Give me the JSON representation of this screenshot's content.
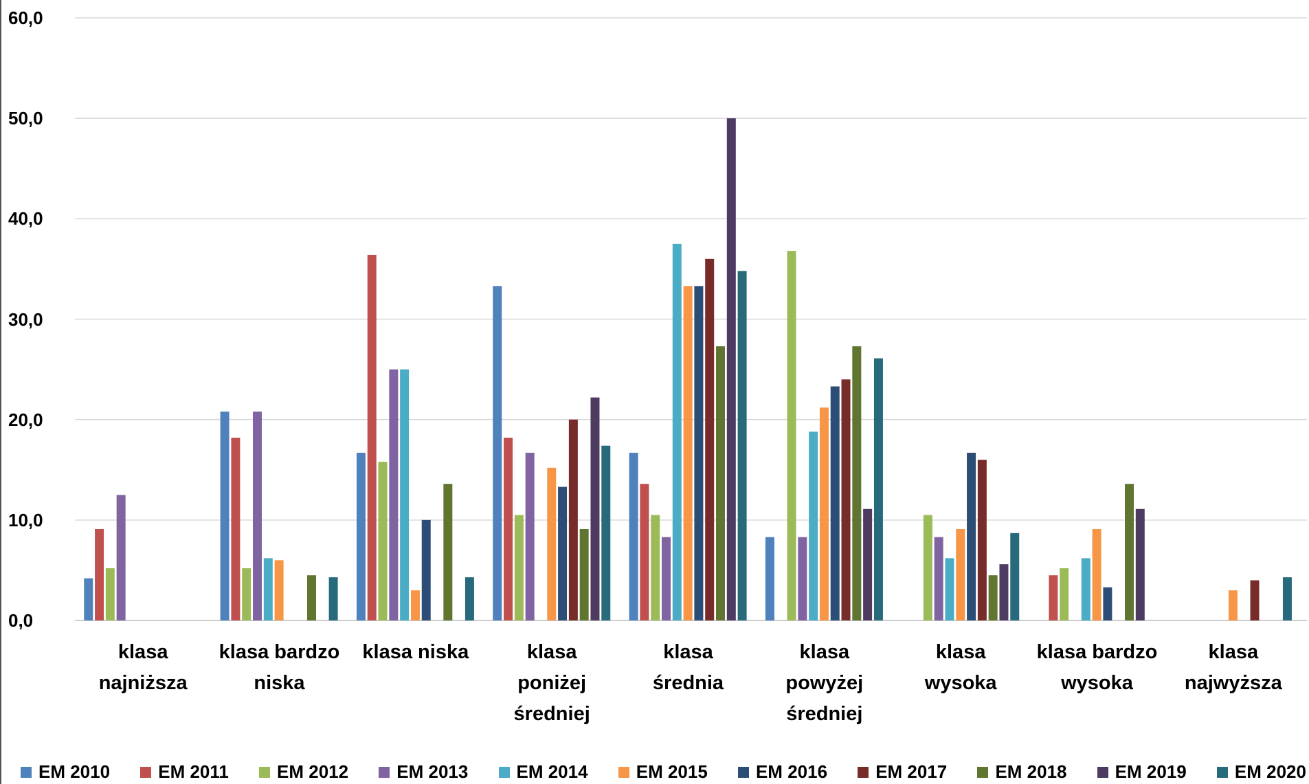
{
  "chart_data": {
    "type": "bar",
    "categories": [
      "klasa najniższa",
      "klasa bardzo niska",
      "klasa niska",
      "klasa poniżej średniej",
      "klasa średnia",
      "klasa powyżej średniej",
      "klasa wysoka",
      "klasa bardzo wysoka",
      "klasa najwyższa"
    ],
    "series": [
      {
        "name": "EM 2010",
        "color": "#4f81bd",
        "values": [
          4.2,
          20.8,
          16.7,
          33.3,
          16.7,
          8.3,
          0,
          0,
          0
        ]
      },
      {
        "name": "EM 2011",
        "color": "#c0504d",
        "values": [
          9.1,
          18.2,
          36.4,
          18.2,
          13.6,
          0,
          0,
          4.5,
          0
        ]
      },
      {
        "name": "EM 2012",
        "color": "#9bbb59",
        "values": [
          5.2,
          5.2,
          15.8,
          10.5,
          10.5,
          36.8,
          10.5,
          5.2,
          0
        ]
      },
      {
        "name": "EM 2013",
        "color": "#8064a2",
        "values": [
          12.5,
          20.8,
          25.0,
          16.7,
          8.3,
          8.3,
          8.3,
          0,
          0
        ]
      },
      {
        "name": "EM 2014",
        "color": "#4bacc6",
        "values": [
          0,
          6.2,
          25.0,
          0,
          37.5,
          18.8,
          6.2,
          6.2,
          0
        ]
      },
      {
        "name": "EM 2015",
        "color": "#f79646",
        "values": [
          0,
          6.0,
          3.0,
          15.2,
          33.3,
          21.2,
          9.1,
          9.1,
          3.0
        ]
      },
      {
        "name": "EM 2016",
        "color": "#2c4d75",
        "values": [
          0,
          0,
          10.0,
          13.3,
          33.3,
          23.3,
          16.7,
          3.3,
          0
        ]
      },
      {
        "name": "EM 2017",
        "color": "#772c2a",
        "values": [
          0,
          0,
          0,
          20.0,
          36.0,
          24.0,
          16.0,
          0,
          4.0
        ]
      },
      {
        "name": "EM 2018",
        "color": "#5f7530",
        "values": [
          0,
          4.5,
          13.6,
          9.1,
          27.3,
          27.3,
          4.5,
          13.6,
          0
        ]
      },
      {
        "name": "EM 2019",
        "color": "#4d3b62",
        "values": [
          0,
          0,
          0,
          22.2,
          50.0,
          11.1,
          5.6,
          11.1,
          0
        ]
      },
      {
        "name": "EM 2020",
        "color": "#276a7c",
        "values": [
          0,
          4.3,
          4.3,
          17.4,
          34.8,
          26.1,
          8.7,
          0,
          4.3
        ]
      }
    ],
    "ylim": [
      0,
      60
    ],
    "yticks": [
      {
        "value": 0,
        "label": "0,0"
      },
      {
        "value": 10,
        "label": "10,0"
      },
      {
        "value": 20,
        "label": "20,0"
      },
      {
        "value": 30,
        "label": "30,0"
      },
      {
        "value": 40,
        "label": "40,0"
      },
      {
        "value": 50,
        "label": "50,0"
      },
      {
        "value": 60,
        "label": "60,0"
      }
    ],
    "grid": true,
    "legend": "bottom"
  }
}
